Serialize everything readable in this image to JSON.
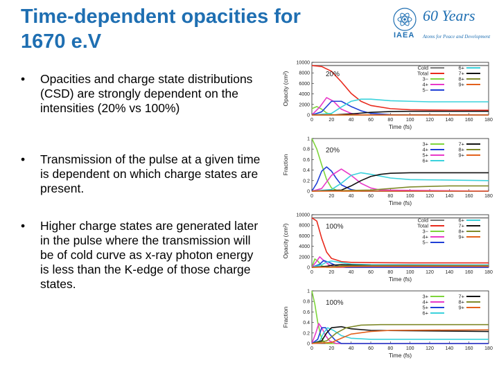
{
  "slide": {
    "title_line1": "Time-dependent opacities for",
    "title_line2": "1670 e.V",
    "title_color": "#1f6fb2",
    "bullet_marker": "•",
    "bullets": [
      "Opacities and charge state distributions (CSD) are strongly dependent on the intensities (20% vs 100%)",
      "Transmission of the pulse at a given time is dependent on which charge states are present.",
      "Higher charge states are generated later in the pulse where the transmission will be of cold curve as x-ray photon energy is less than the K-edge of those charge states."
    ]
  },
  "logo": {
    "anniversary": "60 Years",
    "org": "IAEA",
    "tagline": "Atoms for Peace and Development",
    "icon": "iaea-atom-emblem-icon",
    "color": "#1f6fb2"
  },
  "chart_data": [
    {
      "type": "line",
      "intensity_label": "20%",
      "xlabel": "Time (fs)",
      "ylabel": "Opacity (cm²)",
      "xlim": [
        0,
        180
      ],
      "ylim": [
        0,
        10000
      ],
      "xticks": [
        0,
        20,
        40,
        60,
        80,
        100,
        120,
        140,
        160,
        180
      ],
      "yticks": [
        0,
        2000,
        4000,
        6000,
        8000,
        10000
      ],
      "legend": [
        "Cold",
        "Total",
        "3−",
        "4+",
        "5−",
        "6+",
        "7+",
        "8+",
        "9+"
      ],
      "series": [
        {
          "name": "Cold",
          "color": "#7a7a7a",
          "x": [
            0,
            180
          ],
          "y": [
            9400,
            9400
          ]
        },
        {
          "name": "Total",
          "color": "#e8291c",
          "x": [
            0,
            10,
            20,
            30,
            40,
            50,
            60,
            80,
            100,
            120,
            140,
            180
          ],
          "y": [
            9400,
            9200,
            8300,
            6300,
            4100,
            2600,
            1800,
            1200,
            1000,
            950,
            920,
            900
          ]
        },
        {
          "name": "3−",
          "color": "#7dd43a",
          "x": [
            0,
            5,
            10,
            15,
            20,
            25,
            180
          ],
          "y": [
            1200,
            1600,
            1100,
            400,
            80,
            0,
            0
          ]
        },
        {
          "name": "4+",
          "color": "#e838c8",
          "x": [
            0,
            8,
            15,
            22,
            30,
            40,
            50,
            180
          ],
          "y": [
            0,
            1500,
            3300,
            2600,
            1100,
            300,
            0,
            0
          ]
        },
        {
          "name": "5−",
          "color": "#1f3fd6",
          "x": [
            0,
            10,
            20,
            30,
            40,
            50,
            60,
            80,
            180
          ],
          "y": [
            0,
            600,
            2600,
            2600,
            1600,
            800,
            300,
            60,
            0
          ]
        },
        {
          "name": "6+",
          "color": "#3ad2dc",
          "x": [
            0,
            20,
            30,
            40,
            50,
            60,
            80,
            100,
            120,
            140,
            180
          ],
          "y": [
            0,
            300,
            1500,
            2600,
            3000,
            3000,
            2700,
            2600,
            2500,
            2500,
            2500
          ]
        },
        {
          "name": "7+",
          "color": "#111111",
          "x": [
            0,
            20,
            40,
            60,
            80,
            100,
            180
          ],
          "y": [
            0,
            0,
            200,
            500,
            650,
            700,
            700
          ]
        },
        {
          "name": "8+",
          "color": "#7f8a2a",
          "x": [
            0,
            180
          ],
          "y": [
            0,
            0
          ]
        },
        {
          "name": "9+",
          "color": "#e3611c",
          "x": [
            0,
            180
          ],
          "y": [
            0,
            0
          ]
        }
      ]
    },
    {
      "type": "line",
      "intensity_label": "20%",
      "xlabel": "Time (fs)",
      "ylabel": "Fraction",
      "xlim": [
        0,
        180
      ],
      "ylim": [
        0,
        1
      ],
      "xticks": [
        0,
        20,
        40,
        60,
        80,
        100,
        120,
        140,
        160,
        180
      ],
      "yticks": [
        0,
        0.2,
        0.4,
        0.6,
        0.8,
        1
      ],
      "legend": [
        "3+",
        "4+",
        "5+",
        "6+",
        "7+",
        "8+",
        "9+"
      ],
      "series": [
        {
          "name": "3+",
          "color": "#7dd43a",
          "x": [
            0,
            5,
            10,
            15,
            20,
            25,
            30,
            180
          ],
          "y": [
            1.0,
            0.8,
            0.5,
            0.22,
            0.06,
            0.02,
            0,
            0
          ]
        },
        {
          "name": "4+",
          "color": "#1f3fd6",
          "x": [
            0,
            5,
            10,
            15,
            20,
            25,
            30,
            40,
            50,
            180
          ],
          "y": [
            0,
            0.15,
            0.38,
            0.46,
            0.38,
            0.24,
            0.12,
            0.03,
            0,
            0
          ]
        },
        {
          "name": "5+",
          "color": "#e838c8",
          "x": [
            0,
            10,
            20,
            30,
            40,
            50,
            60,
            70,
            180
          ],
          "y": [
            0,
            0.05,
            0.3,
            0.42,
            0.3,
            0.15,
            0.06,
            0.02,
            0
          ]
        },
        {
          "name": "6+",
          "color": "#3ad2dc",
          "x": [
            0,
            20,
            30,
            40,
            50,
            60,
            80,
            100,
            180
          ],
          "y": [
            0,
            0.03,
            0.15,
            0.3,
            0.35,
            0.32,
            0.25,
            0.22,
            0.2
          ]
        },
        {
          "name": "7+",
          "color": "#111111",
          "x": [
            0,
            30,
            40,
            50,
            60,
            70,
            80,
            100,
            140,
            180
          ],
          "y": [
            0,
            0.02,
            0.1,
            0.2,
            0.28,
            0.32,
            0.34,
            0.35,
            0.35,
            0.35
          ]
        },
        {
          "name": "8+",
          "color": "#7f8a2a",
          "x": [
            0,
            60,
            80,
            100,
            140,
            180
          ],
          "y": [
            0,
            0.02,
            0.05,
            0.08,
            0.1,
            0.1
          ]
        },
        {
          "name": "9+",
          "color": "#e3611c",
          "x": [
            0,
            180
          ],
          "y": [
            0,
            0
          ]
        }
      ]
    },
    {
      "type": "line",
      "intensity_label": "100%",
      "xlabel": "Time (fs)",
      "ylabel": "Opacity (cm²)",
      "xlim": [
        0,
        180
      ],
      "ylim": [
        0,
        10000
      ],
      "xticks": [
        0,
        20,
        40,
        60,
        80,
        100,
        120,
        140,
        160,
        180
      ],
      "yticks": [
        0,
        2000,
        4000,
        6000,
        8000,
        10000
      ],
      "legend": [
        "Cold",
        "Total",
        "3−",
        "4+",
        "5−",
        "6+",
        "7+",
        "8+",
        "9+"
      ],
      "series": [
        {
          "name": "Cold",
          "color": "#7a7a7a",
          "x": [
            0,
            180
          ],
          "y": [
            9400,
            9400
          ]
        },
        {
          "name": "Total",
          "color": "#e8291c",
          "x": [
            0,
            5,
            10,
            15,
            20,
            30,
            40,
            60,
            100,
            180
          ],
          "y": [
            9400,
            8800,
            5500,
            2900,
            1700,
            1100,
            950,
            900,
            850,
            850
          ]
        },
        {
          "name": "3−",
          "color": "#7dd43a",
          "x": [
            0,
            3,
            6,
            10,
            15,
            180
          ],
          "y": [
            0,
            1600,
            1200,
            300,
            0,
            0
          ]
        },
        {
          "name": "4+",
          "color": "#e838c8",
          "x": [
            0,
            5,
            8,
            12,
            18,
            25,
            180
          ],
          "y": [
            0,
            1200,
            2000,
            1300,
            400,
            0,
            0
          ]
        },
        {
          "name": "5−",
          "color": "#1f3fd6",
          "x": [
            0,
            8,
            12,
            18,
            25,
            35,
            180
          ],
          "y": [
            0,
            600,
            1300,
            900,
            300,
            0,
            0
          ]
        },
        {
          "name": "6+",
          "color": "#3ad2dc",
          "x": [
            0,
            10,
            15,
            20,
            30,
            40,
            60,
            180
          ],
          "y": [
            0,
            500,
            1000,
            1200,
            900,
            600,
            500,
            450
          ]
        },
        {
          "name": "7+",
          "color": "#111111",
          "x": [
            0,
            15,
            20,
            30,
            40,
            60,
            180
          ],
          "y": [
            0,
            200,
            400,
            500,
            450,
            350,
            300
          ]
        },
        {
          "name": "8+",
          "color": "#7f8a2a",
          "x": [
            0,
            20,
            30,
            40,
            60,
            180
          ],
          "y": [
            0,
            100,
            250,
            300,
            300,
            300
          ]
        },
        {
          "name": "9+",
          "color": "#e3611c",
          "x": [
            0,
            25,
            40,
            60,
            180
          ],
          "y": [
            0,
            50,
            150,
            200,
            200
          ]
        }
      ]
    },
    {
      "type": "line",
      "intensity_label": "100%",
      "xlabel": "Time (fs)",
      "ylabel": "Fraction",
      "xlim": [
        0,
        180
      ],
      "ylim": [
        0,
        1
      ],
      "xticks": [
        0,
        20,
        40,
        60,
        80,
        100,
        120,
        140,
        160,
        180
      ],
      "yticks": [
        0,
        0.2,
        0.4,
        0.6,
        0.8,
        1
      ],
      "legend": [
        "3+",
        "4+",
        "5+",
        "6+",
        "7+",
        "8+",
        "9+"
      ],
      "series": [
        {
          "name": "3+",
          "color": "#7dd43a",
          "x": [
            0,
            3,
            6,
            9,
            12,
            15,
            180
          ],
          "y": [
            1.0,
            0.75,
            0.4,
            0.15,
            0.03,
            0,
            0
          ]
        },
        {
          "name": "4+",
          "color": "#e838c8",
          "x": [
            0,
            4,
            7,
            10,
            14,
            18,
            25,
            180
          ],
          "y": [
            0,
            0.2,
            0.38,
            0.3,
            0.15,
            0.05,
            0,
            0
          ]
        },
        {
          "name": "5+",
          "color": "#1f3fd6",
          "x": [
            0,
            6,
            10,
            14,
            18,
            24,
            30,
            180
          ],
          "y": [
            0,
            0.08,
            0.3,
            0.3,
            0.18,
            0.06,
            0,
            0
          ]
        },
        {
          "name": "6+",
          "color": "#3ad2dc",
          "x": [
            0,
            8,
            12,
            16,
            22,
            30,
            40,
            60,
            180
          ],
          "y": [
            0,
            0.05,
            0.2,
            0.3,
            0.25,
            0.15,
            0.1,
            0.08,
            0.08
          ]
        },
        {
          "name": "7+",
          "color": "#111111",
          "x": [
            0,
            10,
            15,
            20,
            30,
            40,
            60,
            180
          ],
          "y": [
            0,
            0.05,
            0.2,
            0.3,
            0.32,
            0.28,
            0.25,
            0.23
          ]
        },
        {
          "name": "8+",
          "color": "#7f8a2a",
          "x": [
            0,
            15,
            25,
            35,
            50,
            70,
            180
          ],
          "y": [
            0,
            0.05,
            0.2,
            0.3,
            0.35,
            0.36,
            0.36
          ]
        },
        {
          "name": "9+",
          "color": "#e3611c",
          "x": [
            0,
            20,
            30,
            40,
            60,
            80,
            180
          ],
          "y": [
            0,
            0.02,
            0.1,
            0.18,
            0.23,
            0.25,
            0.26
          ]
        }
      ]
    }
  ]
}
